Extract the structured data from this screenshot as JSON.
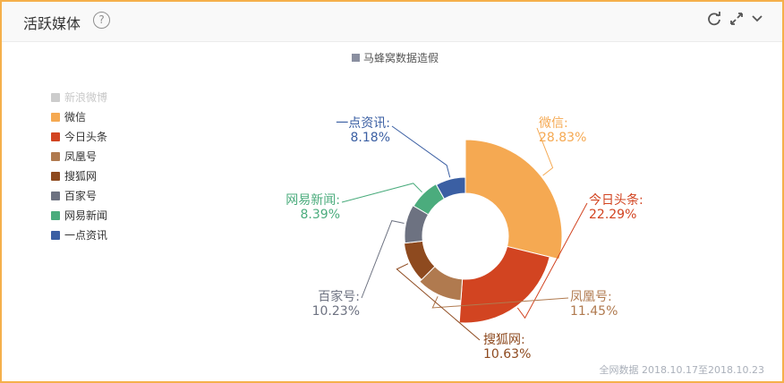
{
  "header": {
    "title": "活跃媒体",
    "help_icon": "question-circle-icon",
    "tools": [
      "refresh-icon",
      "expand-icon",
      "chevron-down-icon"
    ]
  },
  "footer": {
    "note": "全网数据 2018.10.17至2018.10.23"
  },
  "chart_data": {
    "type": "pie",
    "style": "rose-donut",
    "top_legend": "马蜂窝数据造假",
    "legend_placement": "left",
    "categories": [
      "新浪微博",
      "微信",
      "今日头条",
      "凤凰号",
      "搜狐网",
      "百家号",
      "网易新闻",
      "一点资讯"
    ],
    "colors": [
      "#cccccc",
      "#f5a952",
      "#d24421",
      "#b07a4f",
      "#8e4a1f",
      "#6d7281",
      "#4bac7d",
      "#3b5fa3"
    ],
    "legend_disabled": [
      "新浪微博"
    ],
    "slices": [
      {
        "name": "微信",
        "percent": 28.83,
        "label": "微信:",
        "value_label": "28.83%",
        "color": "#f5a952"
      },
      {
        "name": "今日头条",
        "percent": 22.29,
        "label": "今日头条:",
        "value_label": "22.29%",
        "color": "#d24421"
      },
      {
        "name": "凤凰号",
        "percent": 11.45,
        "label": "凤凰号:",
        "value_label": "11.45%",
        "color": "#b07a4f"
      },
      {
        "name": "搜狐网",
        "percent": 10.63,
        "label": "搜狐网:",
        "value_label": "10.63%",
        "color": "#8e4a1f"
      },
      {
        "name": "百家号",
        "percent": 10.23,
        "label": "百家号:",
        "value_label": "10.23%",
        "color": "#6d7281"
      },
      {
        "name": "网易新闻",
        "percent": 8.39,
        "label": "网易新闻:",
        "value_label": "8.39%",
        "color": "#4bac7d"
      },
      {
        "name": "一点资讯",
        "percent": 8.18,
        "label": "一点资讯:",
        "value_label": "8.18%",
        "color": "#3b5fa3"
      }
    ]
  }
}
